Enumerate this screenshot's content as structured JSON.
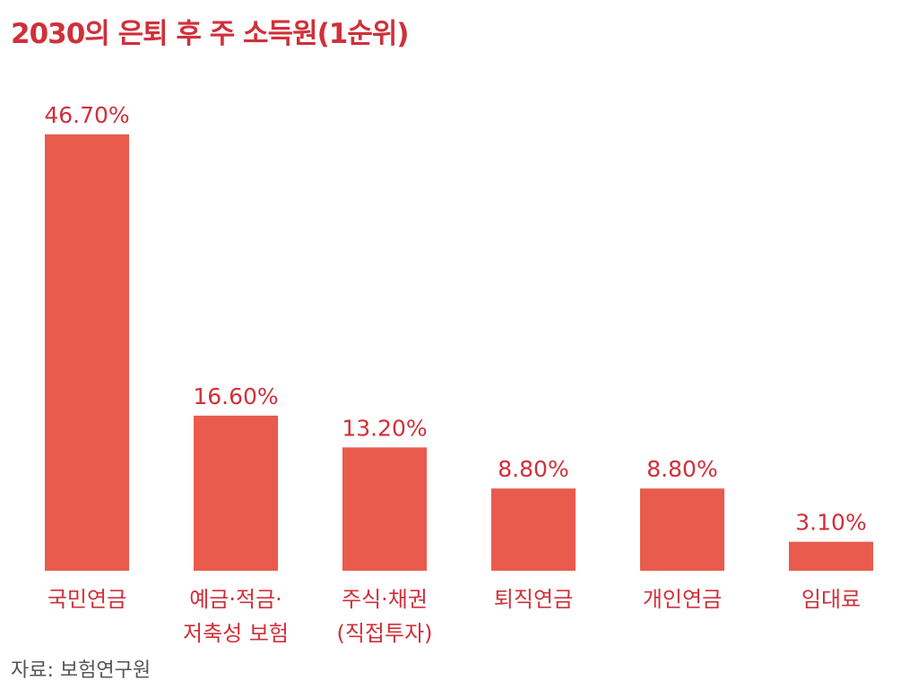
{
  "title": "2030의 은퇴 후 주 소득원(1순위)",
  "source": "자료: 보험연구원",
  "colors": {
    "bar": "#e85b4d",
    "text_accent": "#d0303a",
    "source_text": "#555555"
  },
  "chart_data": {
    "type": "bar",
    "title": "2030의 은퇴 후 주 소득원(1순위)",
    "xlabel": "",
    "ylabel": "",
    "ylim": [
      0,
      50
    ],
    "grid": false,
    "categories": [
      [
        "국민연금"
      ],
      [
        "예금·적금·",
        "저축성 보험"
      ],
      [
        "주식·채권",
        "(직접투자)"
      ],
      [
        "퇴직연금"
      ],
      [
        "개인연금"
      ],
      [
        "임대료"
      ]
    ],
    "values": [
      46.7,
      16.6,
      13.2,
      8.8,
      8.8,
      3.1
    ],
    "value_labels": [
      "46.70%",
      "16.60%",
      "13.20%",
      "8.80%",
      "8.80%",
      "3.10%"
    ]
  }
}
